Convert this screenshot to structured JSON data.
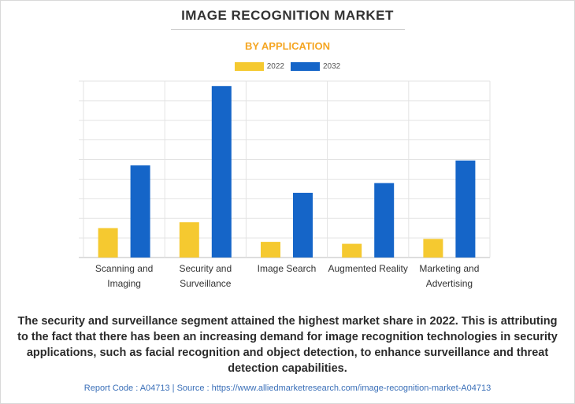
{
  "header": {
    "title": "IMAGE RECOGNITION MARKET",
    "subtitle": "BY APPLICATION"
  },
  "legend": {
    "items": [
      {
        "label": "2022",
        "color": "#f5c930"
      },
      {
        "label": "2032",
        "color": "#1565c8"
      }
    ]
  },
  "chart_data": {
    "type": "bar",
    "categories": [
      [
        "Scanning and",
        "Imaging"
      ],
      [
        "Security and",
        "Surveillance"
      ],
      [
        "Image Search"
      ],
      [
        "Augmented Reality"
      ],
      [
        "Marketing and",
        "Advertising"
      ]
    ],
    "series": [
      {
        "name": "2022",
        "color": "#f5c930",
        "values": [
          15,
          18,
          8,
          7,
          9.5
        ]
      },
      {
        "name": "2032",
        "color": "#1565c8",
        "values": [
          47,
          87.5,
          33,
          38,
          49.5
        ]
      }
    ],
    "ylim": [
      0,
      90
    ],
    "grid": true,
    "legend_position": "top-center"
  },
  "caption": "The security and surveillance segment attained the highest market share in 2022. This is attributing to the fact that there has been an increasing demand for image recognition technologies in security applications, such as facial recognition and object detection, to enhance surveillance and threat detection capabilities.",
  "footer": "Report Code : A04713  |  Source : https://www.alliedmarketresearch.com/image-recognition-market-A04713"
}
